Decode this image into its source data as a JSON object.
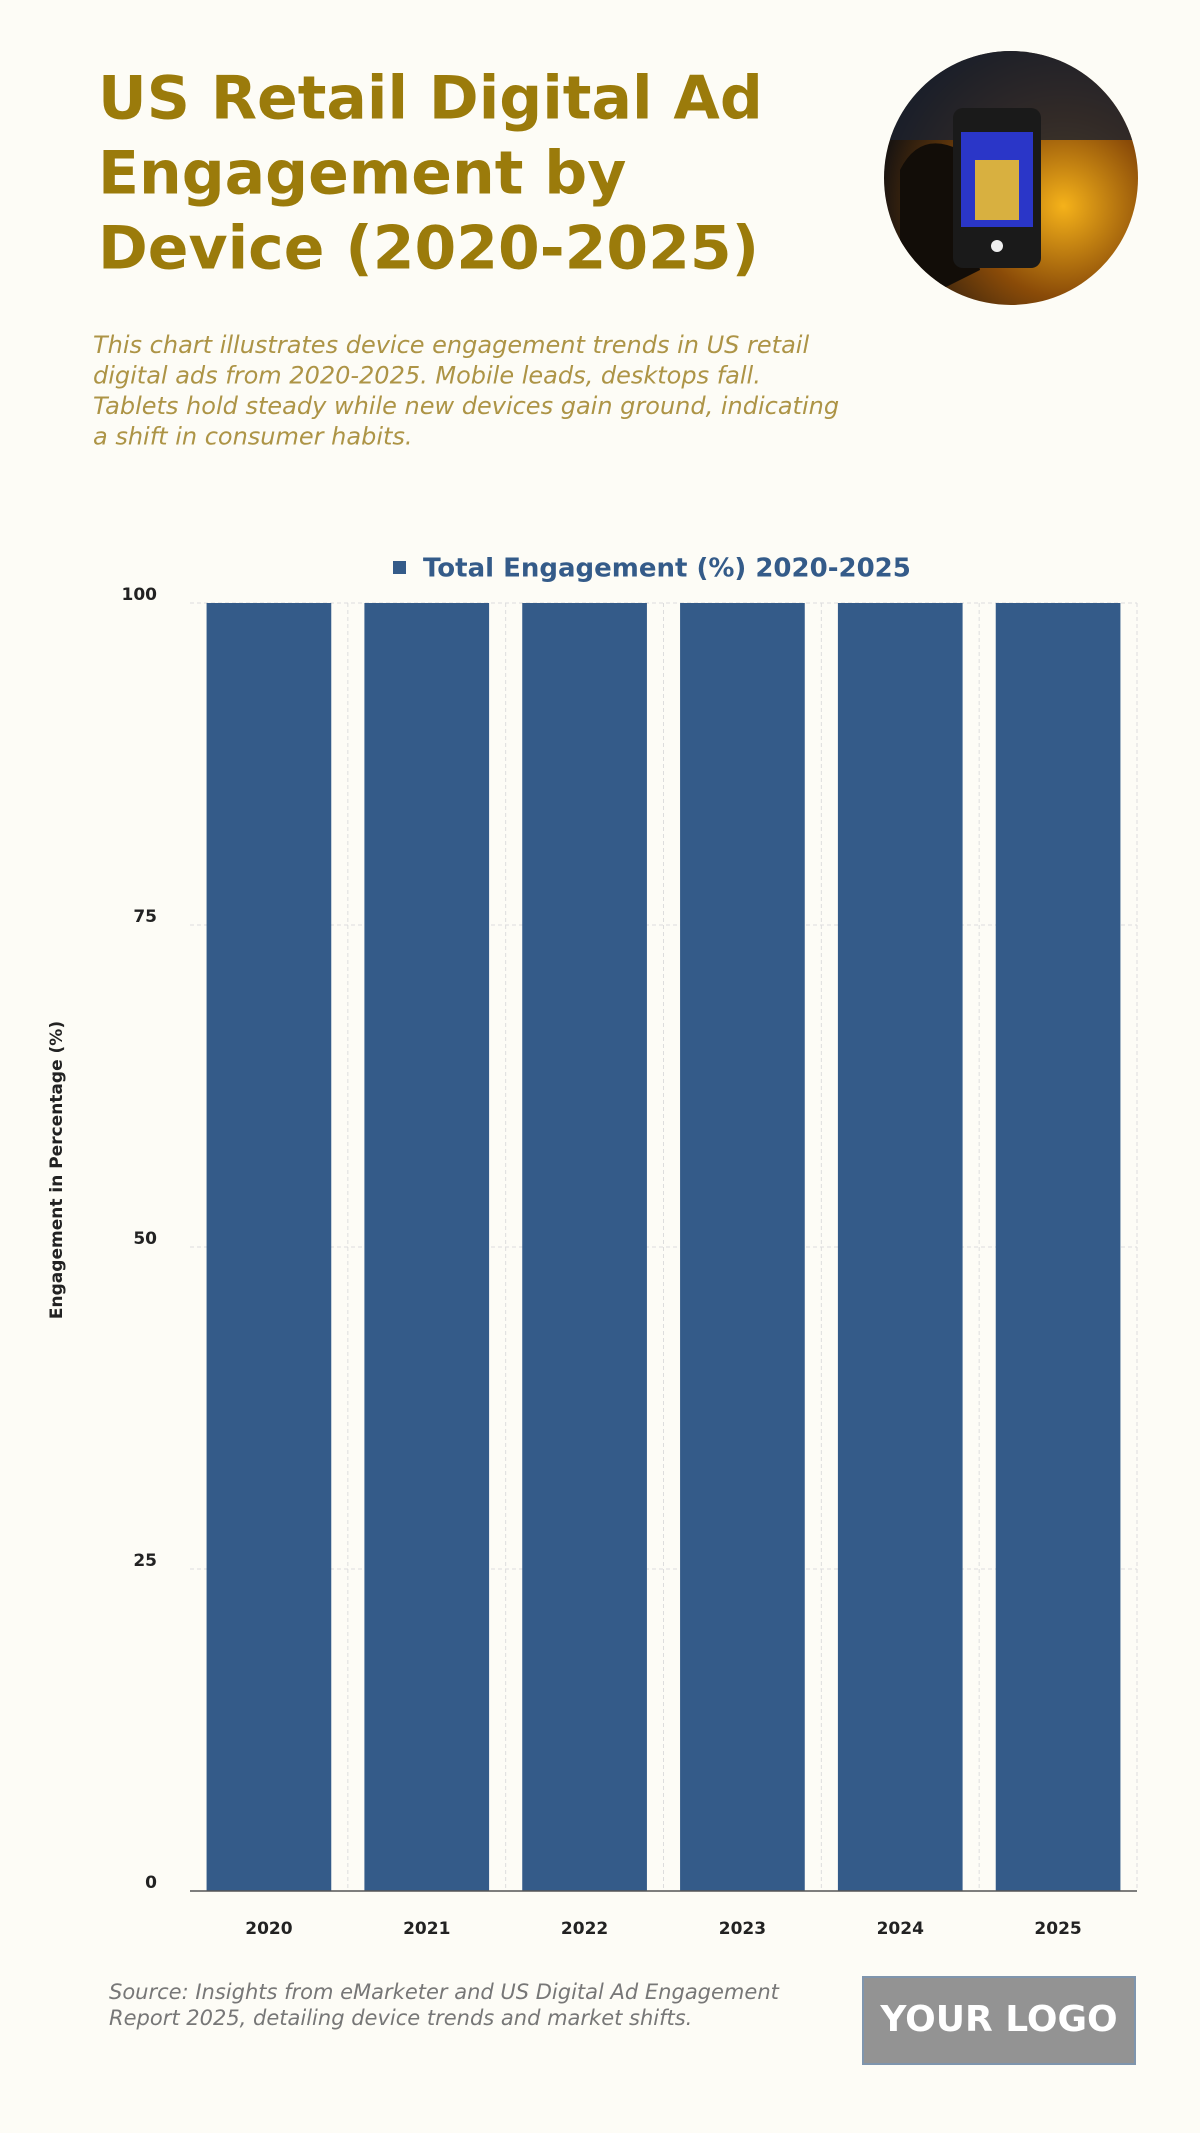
{
  "chart_data": {
    "type": "bar",
    "title": [
      "US Retail Digital Ad",
      "Engagement by",
      "Device (2020-2025)"
    ],
    "subtitle": [
      "This chart illustrates device engagement trends in US retail",
      "digital ads from 2020-2025. Mobile leads, desktops fall.",
      "Tablets hold steady while new devices gain ground, indicating",
      "a shift in consumer habits."
    ],
    "y_label": "Engagement in Percentage (%)",
    "categories": [
      "2020",
      "2021",
      "2022",
      "2023",
      "2024",
      "2025"
    ],
    "series": [
      {
        "name": "Total Engagement (%) 2020-2025",
        "color": "#345b89",
        "values": [
          100,
          100,
          100,
          100,
          100,
          100
        ]
      }
    ],
    "ylim": [
      0,
      100
    ],
    "yticks": [
      0,
      25,
      50,
      75,
      100
    ],
    "grid": true,
    "legend": "top",
    "source": [
      "Source: Insights from eMarketer and US Digital Ad Engagement",
      "Report 2025, detailing device trends and market shifts."
    ],
    "logo": "YOUR LOGO"
  }
}
